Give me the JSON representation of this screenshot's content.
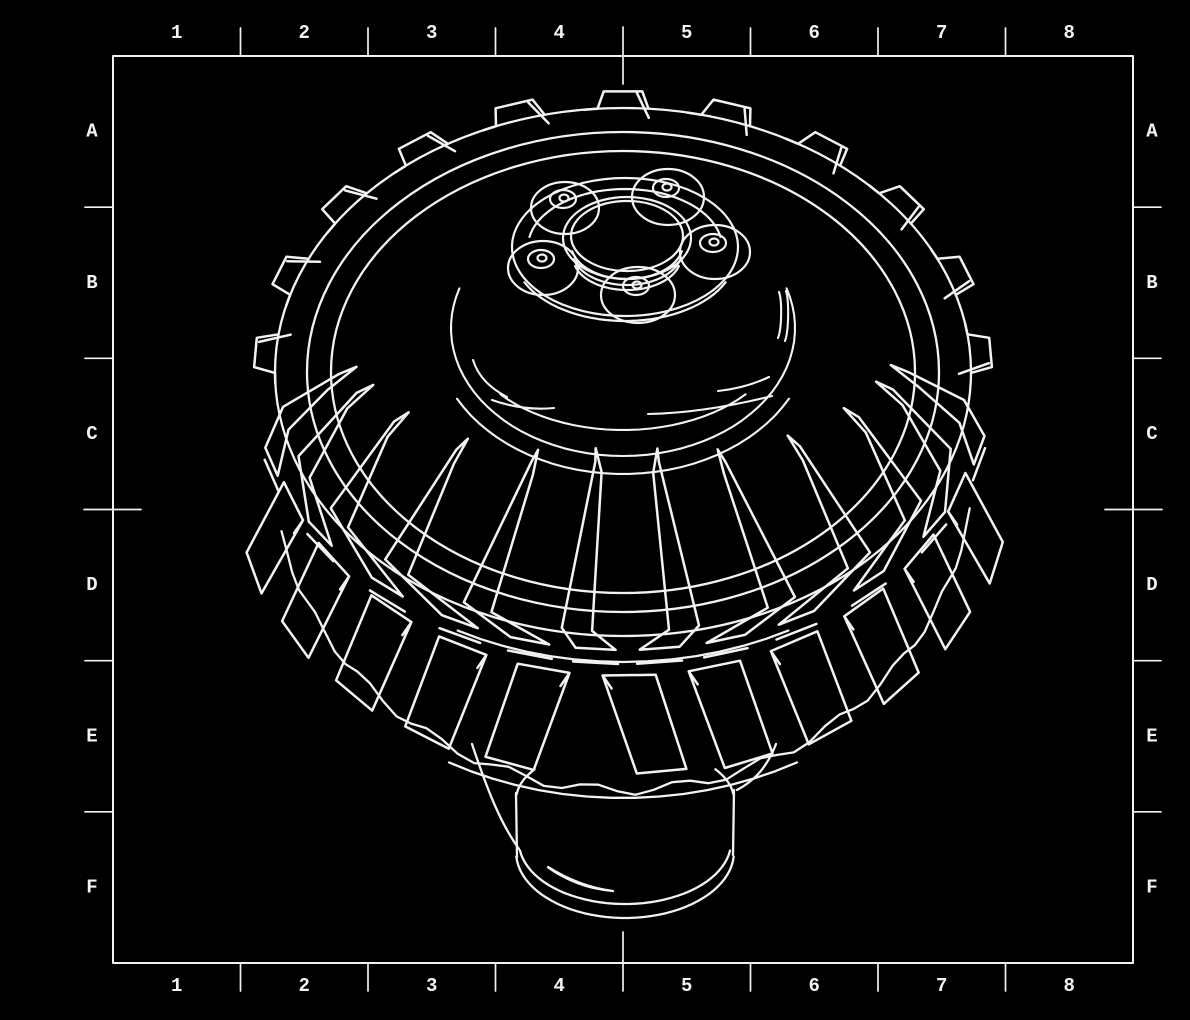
{
  "sheet": {
    "background_color": "#000000",
    "line_color": "#f2f2f2",
    "column_labels": [
      "1",
      "2",
      "3",
      "4",
      "5",
      "6",
      "7",
      "8"
    ],
    "row_labels": [
      "A",
      "B",
      "C",
      "D",
      "E",
      "F"
    ]
  },
  "drawing": {
    "subject": "off-road tire with bolted hub and axle drum, isometric line drawing",
    "rim_bump_count": 11,
    "upper_lug_count": 12,
    "lower_lug_count": 11,
    "bolt_boss_count": 5
  }
}
